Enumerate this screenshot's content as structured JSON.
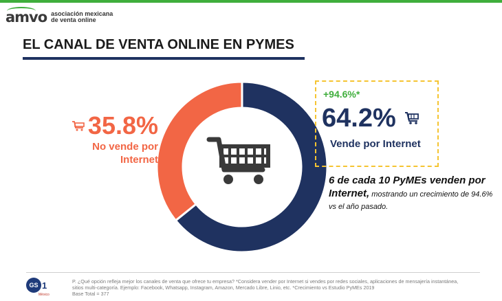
{
  "brand": {
    "logo_mark": "amvo",
    "logo_text_line1": "asociación mexicana",
    "logo_text_line2": "de venta online",
    "accent_color": "#3fae3c"
  },
  "title": "EL CANAL DE VENTA ONLINE EN PYMES",
  "chart_data": {
    "type": "pie",
    "variant": "donut",
    "categories": [
      "Vende por Internet",
      "No vende por Internet"
    ],
    "values": [
      64.2,
      35.8
    ],
    "colors": [
      "#1f3260",
      "#f26645"
    ],
    "center_icon": "shopping-cart-icon"
  },
  "left_label": {
    "percent": "35.8%",
    "line1": "No vende por",
    "line2": "Internet",
    "icon": "shopping-cart-icon",
    "color": "#f26645"
  },
  "right_label": {
    "growth": "+94.6%*",
    "percent": "64.2%",
    "label": "Vende por Internet",
    "icon": "shopping-cart-icon",
    "color": "#1f3260",
    "callout_border_color": "#f5c431"
  },
  "note": {
    "strong_line1": "6 de cada 10 PyMEs venden por",
    "strong_word": "Internet,",
    "rest": " mostrando un crecimiento de 94.6% vs el año pasado."
  },
  "footer": {
    "gs1_text": "GS",
    "gs1_one": "1",
    "gs1_sub": "México",
    "question": "P. ¿Qué opción refleja mejor los canales de venta que ofrece tu empresa? *Considera vender por Internet si vendes por redes sociales, aplicaciones de mensajería instantánea, sitios multi-categoría. Ejemplo: Facebook, Whatsapp, Instagram, Amazon, Mercado Libre, Linio, etc. *Crecimiento vs Estudio PyMEs 2019",
    "base": "Base Total = 377"
  }
}
